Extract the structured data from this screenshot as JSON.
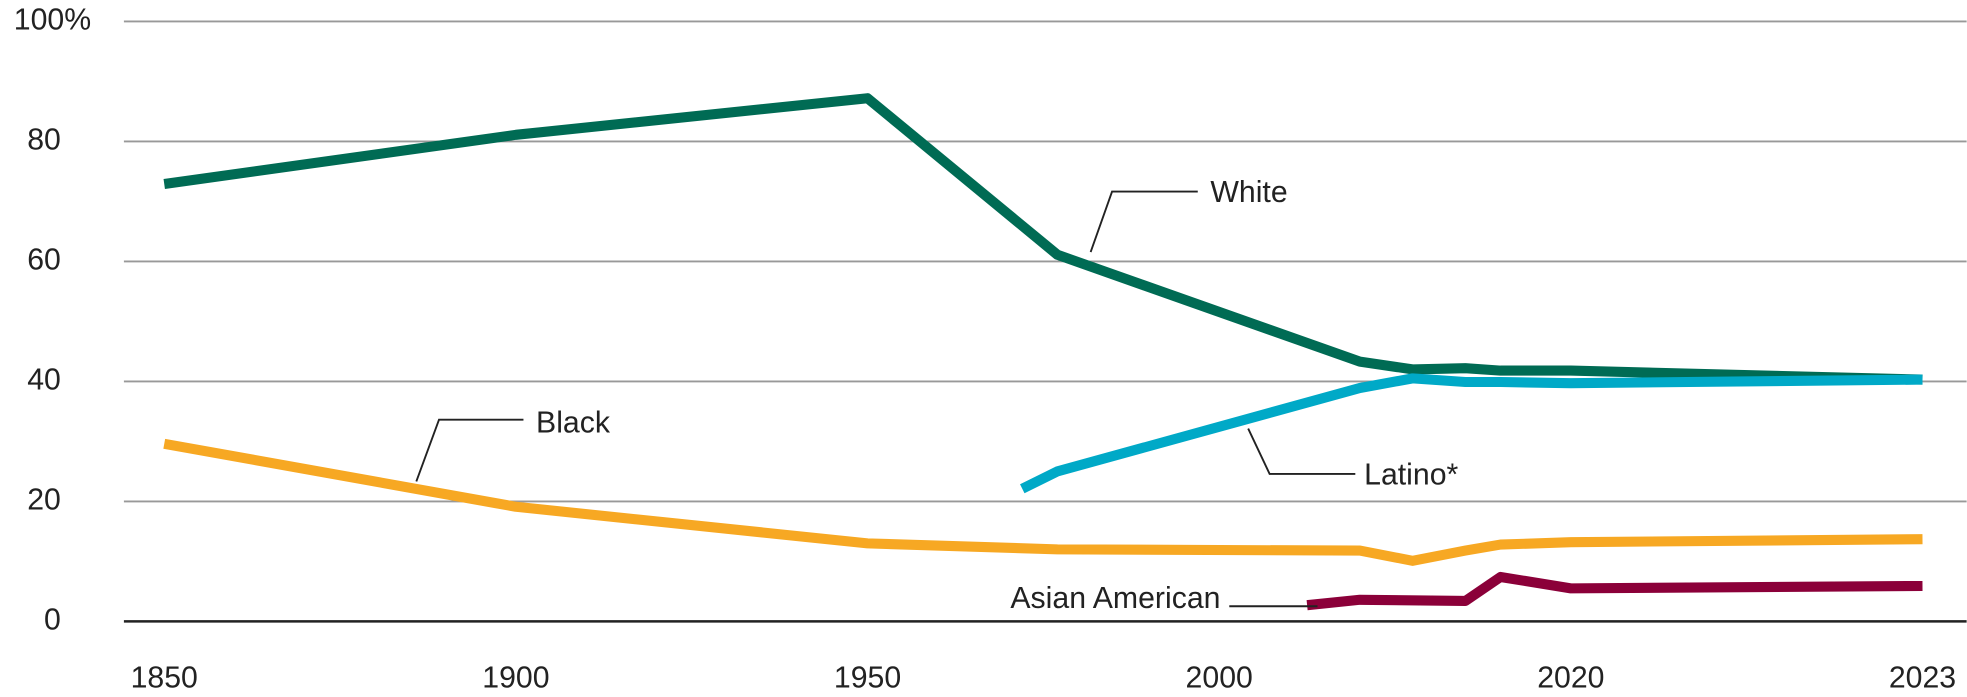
{
  "chart_data": {
    "type": "line",
    "xlim": [
      1850,
      2023
    ],
    "xticks": [
      1850,
      1900,
      1950,
      2000,
      2020,
      2023
    ],
    "ylim": [
      0,
      100
    ],
    "yticks": [
      0,
      20,
      40,
      60,
      80,
      {
        "value": 100,
        "label": "100%"
      }
    ],
    "grid": true,
    "series": [
      {
        "name": "White",
        "color": "#006b54",
        "x": [
          1850,
          1900,
          1950,
          1977,
          2008,
          2011,
          2014,
          2016,
          2020,
          2023
        ],
        "values": [
          72.9,
          81.1,
          87.2,
          61.1,
          43.3,
          42,
          42.2,
          41.8,
          41.8,
          40.3
        ]
      },
      {
        "name": "Black",
        "color": "#f7a823",
        "x": [
          1850,
          1900,
          1950,
          1977,
          2008,
          2011,
          2014,
          2016,
          2020,
          2023
        ],
        "values": [
          29.6,
          19.1,
          13,
          12,
          11.8,
          10.1,
          11.8,
          12.8,
          13.2,
          13.7
        ]
      },
      {
        "name": "Latino*",
        "color": "#00a9c7",
        "x": [
          1972,
          1977,
          2008,
          2011,
          2014,
          2016,
          2020,
          2023
        ],
        "values": [
          22.1,
          25,
          38.9,
          40.5,
          39.9,
          39.9,
          39.7,
          40.3
        ]
      },
      {
        "name": "Asian American",
        "color": "#8b0039",
        "x": [
          2005,
          2008,
          2014,
          2016,
          2020,
          2023
        ],
        "values": [
          2.7,
          3.6,
          3.4,
          7.4,
          5.5,
          5.9
        ]
      }
    ]
  }
}
